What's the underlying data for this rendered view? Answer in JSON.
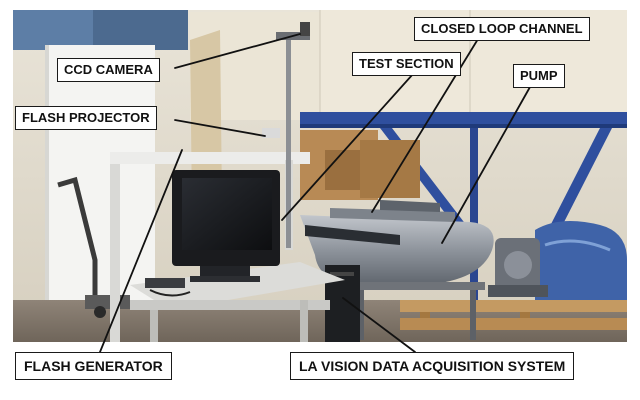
{
  "labels": {
    "ccd_camera": "CCD CAMERA",
    "flash_projector": "FLASH PROJECTOR",
    "test_section": "TEST SECTION",
    "closed_loop_channel": "CLOSED LOOP CHANNEL",
    "pump": "PUMP",
    "flash_generator": "FLASH GENERATOR",
    "la_vision": "LA VISION DATA ACQUISITION SYSTEM"
  },
  "colors": {
    "callout_border": "#1a1a1a",
    "leader_line": "#111111",
    "steel_beam": "#2f4f9e",
    "cardboard": "#b88a55",
    "pallet_wood": "#c49a62",
    "channel_steel": "#9aa0a8",
    "blue_wrap": "#3f63a8"
  }
}
